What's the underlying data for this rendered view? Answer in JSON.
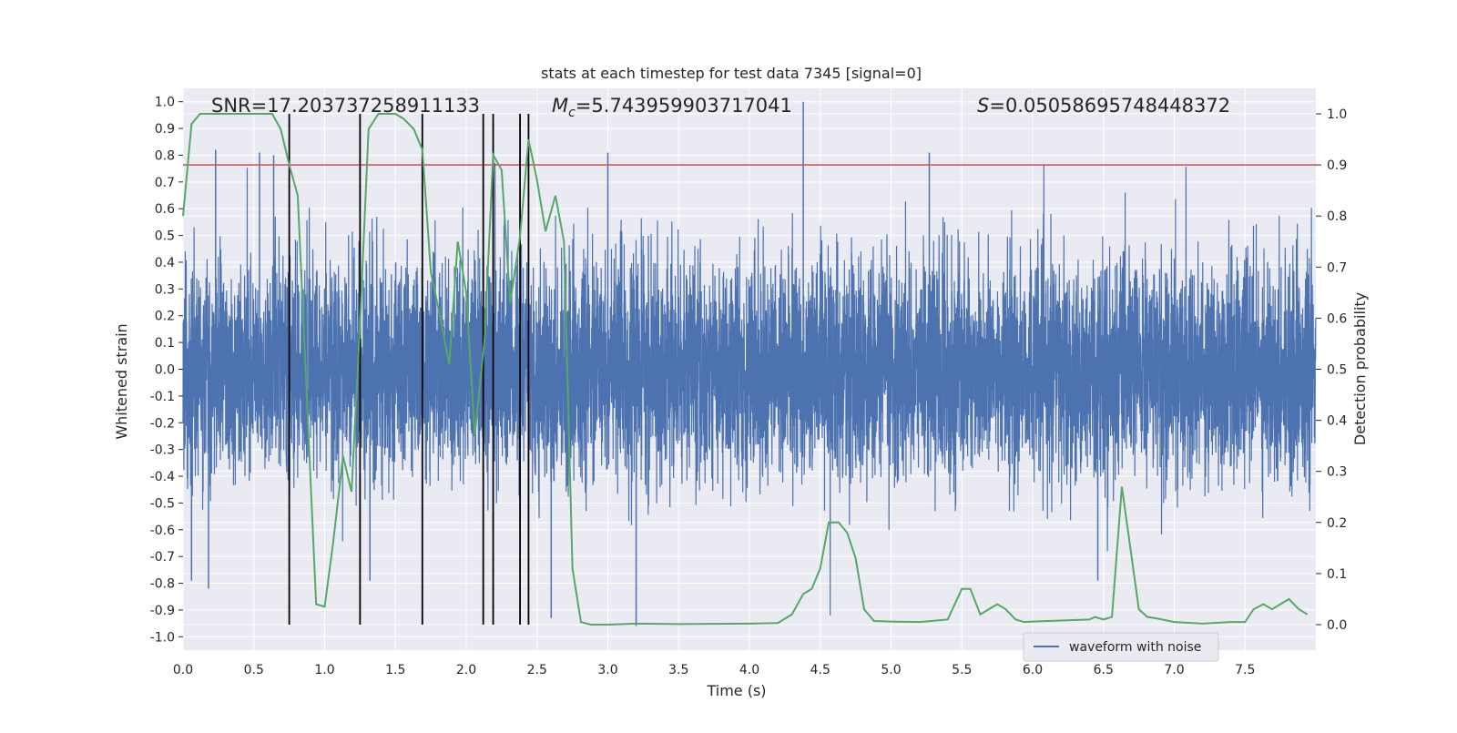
{
  "chart_data": {
    "type": "line",
    "title": "stats at each timestep for test data 7345 [signal=0]",
    "xlabel": "Time (s)",
    "ylabel_left": "Whitened strain",
    "ylabel_right": "Detection probability",
    "xlim": [
      0.0,
      8.0
    ],
    "ylim_left": [
      -1.05,
      1.05
    ],
    "ylim_right": [
      -0.05,
      1.05
    ],
    "x_ticks": [
      "0.0",
      "0.5",
      "1.0",
      "1.5",
      "2.0",
      "2.5",
      "3.0",
      "3.5",
      "4.0",
      "4.5",
      "5.0",
      "5.5",
      "6.0",
      "6.5",
      "7.0",
      "7.5"
    ],
    "y_ticks_left": [
      "-1.0",
      "-0.9",
      "-0.8",
      "-0.7",
      "-0.6",
      "-0.5",
      "-0.4",
      "-0.3",
      "-0.2",
      "-0.1",
      "0.0",
      "0.1",
      "0.2",
      "0.3",
      "0.4",
      "0.5",
      "0.6",
      "0.7",
      "0.8",
      "0.9",
      "1.0"
    ],
    "y_ticks_right": [
      "0.0",
      "0.1",
      "0.2",
      "0.3",
      "0.4",
      "0.5",
      "0.6",
      "0.7",
      "0.8",
      "0.9",
      "1.0"
    ],
    "grid": true,
    "legend": {
      "position": "lower-right",
      "entries": [
        "waveform with noise"
      ]
    },
    "stats": {
      "snr_label": "SNR=17.203737258911133",
      "mc_prefix": "M",
      "mc_sub": "c",
      "mc_value": "=5.743959903717041",
      "s_prefix": "S",
      "s_value": "=0.05058695748448372"
    },
    "threshold_line": {
      "axis": "right",
      "value": 0.9,
      "color": "#c44e52"
    },
    "event_lines_x": [
      0.75,
      1.25,
      1.69,
      2.12,
      2.19,
      2.38,
      2.44
    ],
    "series": [
      {
        "name": "waveform with noise",
        "axis": "left",
        "color": "#4c72b0",
        "generator": {
          "seed": 7345,
          "sample_rate": 1024,
          "duration": 8.0,
          "amplitude": 0.2
        },
        "notable_peaks": [
          {
            "x": 0.23,
            "y": 0.82
          },
          {
            "x": 0.54,
            "y": 0.81
          },
          {
            "x": 0.64,
            "y": 0.8
          },
          {
            "x": 3.0,
            "y": 0.81
          },
          {
            "x": 4.38,
            "y": 1.0
          },
          {
            "x": 5.27,
            "y": 0.81
          },
          {
            "x": 0.06,
            "y": -0.79
          },
          {
            "x": 0.18,
            "y": -0.82
          },
          {
            "x": 1.32,
            "y": -0.79
          },
          {
            "x": 2.6,
            "y": -0.93
          },
          {
            "x": 3.2,
            "y": -0.96
          },
          {
            "x": 6.46,
            "y": -0.79
          }
        ]
      },
      {
        "name": "",
        "axis": "right",
        "color": "#55a868",
        "x": [
          0.0,
          0.06,
          0.12,
          0.2,
          0.3,
          0.4,
          0.5,
          0.63,
          0.69,
          0.75,
          0.81,
          0.94,
          1.0,
          1.06,
          1.13,
          1.19,
          1.25,
          1.31,
          1.38,
          1.44,
          1.5,
          1.56,
          1.63,
          1.69,
          1.75,
          1.81,
          1.88,
          1.94,
          2.0,
          2.06,
          2.13,
          2.19,
          2.25,
          2.31,
          2.38,
          2.44,
          2.5,
          2.56,
          2.63,
          2.69,
          2.75,
          2.81,
          2.88,
          3.0,
          3.2,
          3.5,
          4.0,
          4.2,
          4.3,
          4.38,
          4.44,
          4.5,
          4.56,
          4.63,
          4.69,
          4.75,
          4.81,
          4.88,
          5.0,
          5.2,
          5.4,
          5.5,
          5.56,
          5.63,
          5.69,
          5.75,
          5.81,
          5.88,
          5.94,
          6.0,
          6.2,
          6.4,
          6.44,
          6.5,
          6.56,
          6.63,
          6.69,
          6.75,
          6.81,
          6.88,
          7.0,
          7.2,
          7.4,
          7.5,
          7.56,
          7.63,
          7.69,
          7.75,
          7.81,
          7.88,
          7.94
        ],
        "values": [
          0.8,
          0.98,
          1.0,
          1.0,
          1.0,
          1.0,
          1.0,
          1.0,
          0.97,
          0.9,
          0.84,
          0.04,
          0.035,
          0.16,
          0.33,
          0.26,
          0.59,
          0.97,
          1.0,
          1.0,
          1.0,
          0.99,
          0.97,
          0.93,
          0.69,
          0.61,
          0.51,
          0.75,
          0.65,
          0.37,
          0.56,
          0.92,
          0.89,
          0.63,
          0.76,
          0.95,
          0.87,
          0.77,
          0.84,
          0.75,
          0.11,
          0.005,
          0.0,
          0.0,
          0.002,
          0.001,
          0.002,
          0.003,
          0.02,
          0.06,
          0.07,
          0.11,
          0.2,
          0.2,
          0.18,
          0.13,
          0.03,
          0.007,
          0.006,
          0.005,
          0.01,
          0.07,
          0.07,
          0.02,
          0.03,
          0.04,
          0.03,
          0.01,
          0.005,
          0.006,
          0.008,
          0.01,
          0.015,
          0.01,
          0.015,
          0.27,
          0.15,
          0.03,
          0.015,
          0.012,
          0.005,
          0.002,
          0.005,
          0.005,
          0.03,
          0.04,
          0.03,
          0.04,
          0.05,
          0.03,
          0.02
        ]
      }
    ]
  }
}
